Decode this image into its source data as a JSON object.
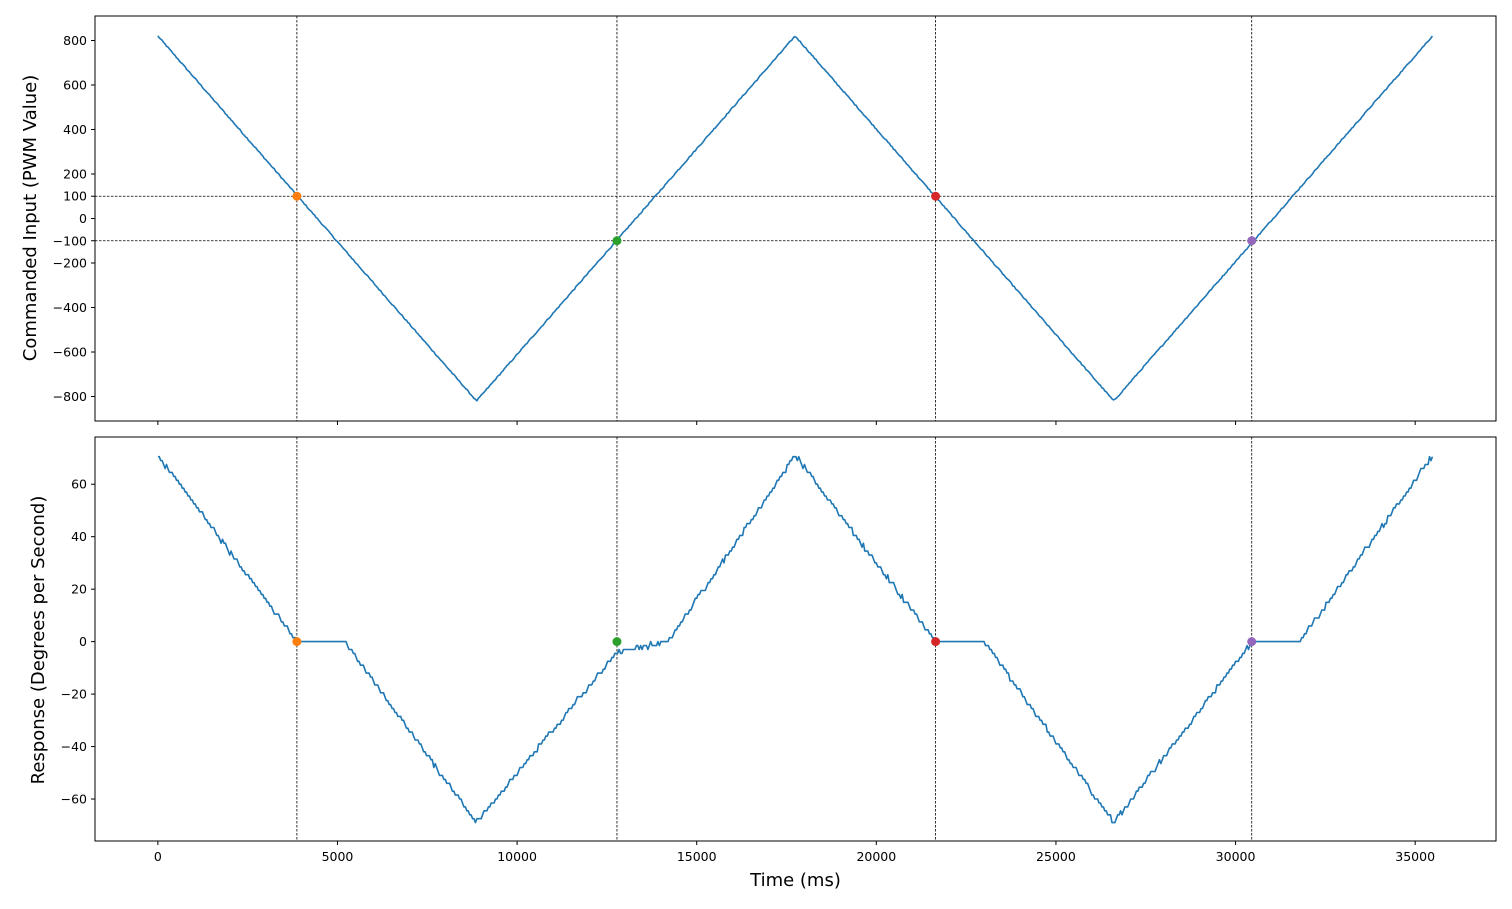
{
  "chart_data": [
    {
      "type": "line",
      "ylabel": "Commanded Input (PWM Value)",
      "xlabel": "",
      "xlim": [
        -1750,
        37250
      ],
      "ylim": [
        -910,
        910
      ],
      "x_ticks": [
        0,
        5000,
        10000,
        15000,
        20000,
        25000,
        30000,
        35000
      ],
      "x_tick_labels_shown": false,
      "y_ticks": [
        -800,
        -600,
        -400,
        -200,
        -100,
        0,
        100,
        200,
        400,
        600,
        800
      ],
      "y_tick_labels": [
        "−800",
        "−600",
        "−400",
        "−200",
        "−100",
        "0",
        "100",
        "200",
        "400",
        "600",
        "800"
      ],
      "series": [
        {
          "color": "#1f77b4",
          "x": [
            0,
            8870,
            17740,
            26610,
            35480
          ],
          "y": [
            820,
            -820,
            820,
            -820,
            820
          ]
        }
      ],
      "hlines": [
        100,
        -100
      ],
      "vlines": [
        3870,
        12780,
        21650,
        30450
      ],
      "markers": [
        {
          "x": 3870,
          "y": 100,
          "color": "#ff7f0e"
        },
        {
          "x": 12780,
          "y": -100,
          "color": "#2ca02c"
        },
        {
          "x": 21650,
          "y": 100,
          "color": "#d62728"
        },
        {
          "x": 30450,
          "y": -100,
          "color": "#9467bd"
        }
      ],
      "grid": false
    },
    {
      "type": "line",
      "ylabel": "Response (Degrees per Second)",
      "xlabel": "Time (ms)",
      "xlim": [
        -1750,
        37250
      ],
      "ylim": [
        -76,
        78
      ],
      "x_ticks": [
        0,
        5000,
        10000,
        15000,
        20000,
        25000,
        30000,
        35000
      ],
      "x_tick_labels": [
        "0",
        "5000",
        "10000",
        "15000",
        "20000",
        "25000",
        "30000",
        "35000"
      ],
      "y_ticks": [
        -60,
        -40,
        -20,
        0,
        20,
        40,
        60
      ],
      "y_tick_labels": [
        "−60",
        "−40",
        "−20",
        "0",
        "20",
        "40",
        "60"
      ],
      "series": [
        {
          "color": "#1f77b4",
          "x": [
            0,
            3870,
            4400,
            5200,
            8870,
            12780,
            14200,
            17740,
            21650,
            23000,
            26610,
            30450,
            31800,
            35480
          ],
          "y": [
            71,
            0,
            0,
            0,
            -69,
            -4,
            0,
            71,
            0,
            0,
            -69,
            0,
            0,
            71
          ]
        }
      ],
      "vlines": [
        3870,
        12780,
        21650,
        30450
      ],
      "markers": [
        {
          "x": 3870,
          "y": 0,
          "color": "#ff7f0e"
        },
        {
          "x": 12780,
          "y": 0,
          "color": "#2ca02c"
        },
        {
          "x": 21650,
          "y": 0,
          "color": "#d62728"
        },
        {
          "x": 30450,
          "y": 0,
          "color": "#9467bd"
        }
      ],
      "grid": false
    }
  ]
}
